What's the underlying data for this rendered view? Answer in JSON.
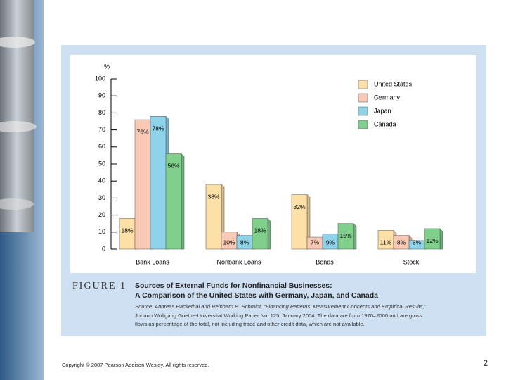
{
  "chart_data": {
    "type": "bar",
    "y_label": "%",
    "categories": [
      "Bank Loans",
      "Nonbank Loans",
      "Bonds",
      "Stock"
    ],
    "series": [
      {
        "name": "United States",
        "color": "#fde0a8",
        "values": [
          18,
          38,
          32,
          11
        ],
        "value_labels": [
          "18%",
          "38%",
          "32%",
          "11%"
        ]
      },
      {
        "name": "Germany",
        "color": "#f9c9b5",
        "values": [
          76,
          10,
          7,
          8
        ],
        "value_labels": [
          "76%",
          "10%",
          "7%",
          "8%"
        ]
      },
      {
        "name": "Japan",
        "color": "#8fd3ea",
        "values": [
          78,
          8,
          9,
          5
        ],
        "value_labels": [
          "78%",
          "8%",
          "9%",
          "5%"
        ]
      },
      {
        "name": "Canada",
        "color": "#80cf8c",
        "values": [
          56,
          18,
          15,
          12
        ],
        "value_labels": [
          "56%",
          "18%",
          "15%",
          "12%"
        ]
      }
    ],
    "ylim": [
      0,
      100
    ],
    "yticks": [
      0,
      10,
      20,
      30,
      40,
      50,
      60,
      70,
      80,
      90,
      100
    ]
  },
  "figure": {
    "label": "FIGURE 1",
    "title_lines": [
      "Sources of External Funds for Nonfinancial Businesses:",
      "A Comparison of the United States with Germany, Japan, and Canada"
    ],
    "source_lines": [
      "Source: Andreas Hackethal and Reinhard H. Schmidt, “Financing Patterns: Measurement Concepts and Empirical Results,”",
      "Johann Wolfgang Goethe-Universitat Working Paper No. 125, January 2004. The data are from 1970–2000 and are gross",
      "flows as percentage of the total, not including trade and other credit data, which are not available."
    ]
  },
  "footer": {
    "copyright": "Copyright © 2007 Pearson Addison-Wesley. All rights reserved.",
    "page": "2"
  }
}
